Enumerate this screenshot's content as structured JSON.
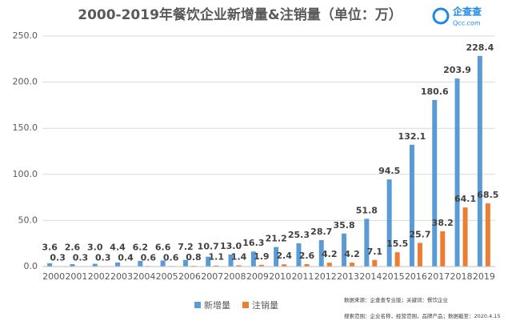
{
  "chart_data": {
    "type": "bar",
    "title": "2000-2019年餐饮企业新增量&注销量（单位：万）",
    "logo": {
      "name": "企查查",
      "site": "Qcc.com"
    },
    "notes": [
      "数据来源：企查查专业版；关键词：餐饮企业",
      "搜索范围：企业名称，经营范围，品牌产品；数据截至：2020.4.15"
    ],
    "categories": [
      "2000",
      "2001",
      "2002",
      "2003",
      "2004",
      "2005",
      "2006",
      "2007",
      "2008",
      "2009",
      "2010",
      "2011",
      "2012",
      "2013",
      "2014",
      "2015",
      "2016",
      "2017",
      "2018",
      "2019"
    ],
    "series": [
      {
        "name": "新增量",
        "color": "#5b9bd5",
        "values": [
          3.6,
          2.6,
          3.0,
          4.4,
          6.2,
          6.6,
          7.2,
          10.7,
          13.0,
          16.3,
          21.2,
          25.3,
          28.7,
          35.8,
          51.8,
          94.5,
          132.1,
          180.6,
          203.9,
          228.4
        ],
        "value_labels": [
          "3.6",
          "2.6",
          "3.0",
          "4.4",
          "6.2",
          "6.6",
          "7.2",
          "10.7",
          "13.0",
          "16.3",
          "21.2",
          "25.3",
          "28.7",
          "35.8",
          "51.8",
          "94.5",
          "132.1",
          "180.6",
          "203.9",
          "228.4"
        ]
      },
      {
        "name": "注销量",
        "color": "#ed7d31",
        "values": [
          0.3,
          0.3,
          0.3,
          0.4,
          0.6,
          0.6,
          0.8,
          1.1,
          1.4,
          1.9,
          2.4,
          2.6,
          4.2,
          4.2,
          7.1,
          15.5,
          25.7,
          38.2,
          64.1,
          68.5
        ],
        "value_labels": [
          "0.3",
          "0.3",
          "0.3",
          "0.4",
          "0.6",
          "0.6",
          "0.8",
          "1.1",
          "1.4",
          "1.9",
          "2.4",
          "2.6",
          "4.2",
          "4.2",
          "7.1",
          "15.5",
          "25.7",
          "38.2",
          "64.1",
          "68.5"
        ]
      }
    ],
    "ylim": [
      0,
      250
    ],
    "yticks": [
      {
        "value": 0,
        "label": "0.0"
      },
      {
        "value": 50,
        "label": "50.0"
      },
      {
        "value": 100,
        "label": "100.0"
      },
      {
        "value": 150,
        "label": "150.0"
      },
      {
        "value": 200,
        "label": "200.0"
      },
      {
        "value": 250,
        "label": "250.0"
      }
    ],
    "grid": true,
    "legend": "bottom"
  }
}
